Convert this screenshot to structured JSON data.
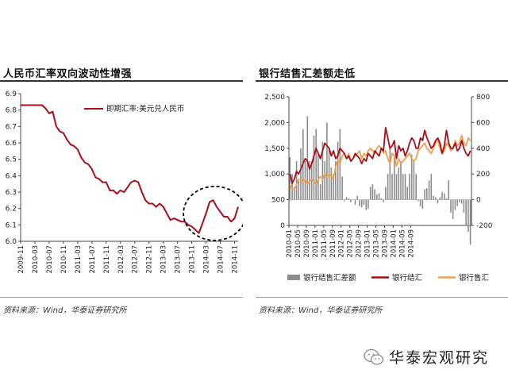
{
  "left_panel": {
    "title": "人民币汇率双向波动性增强",
    "source": "资料来源：Wind，华泰证券研究所"
  },
  "right_panel": {
    "title": "银行结售汇差额走低",
    "source": "资料来源：Wind，华泰证券研究所"
  },
  "watermark": {
    "text": "华泰宏观研究",
    "icon": "wechat-icon"
  },
  "colors": {
    "dark_red": "#a80d19",
    "orange": "#f0a050",
    "gray_bar": "#8c8c8c",
    "ellipse": "#000000"
  },
  "chart_data": [
    {
      "type": "line",
      "legend_position": "top-center",
      "grid": false,
      "series": [
        {
          "name": "即期汇率:美元兑人民币",
          "color": "#a80d19",
          "points": [
            [
              "2009-11",
              6.83
            ],
            [
              "2010-01",
              6.83
            ],
            [
              "2010-03",
              6.83
            ],
            [
              "2010-05",
              6.83
            ],
            [
              "2010-06",
              6.81
            ],
            [
              "2010-07",
              6.78
            ],
            [
              "2010-08",
              6.79
            ],
            [
              "2010-09",
              6.7
            ],
            [
              "2010-10",
              6.67
            ],
            [
              "2010-11",
              6.66
            ],
            [
              "2010-12",
              6.62
            ],
            [
              "2011-01",
              6.59
            ],
            [
              "2011-02",
              6.58
            ],
            [
              "2011-03",
              6.56
            ],
            [
              "2011-04",
              6.51
            ],
            [
              "2011-05",
              6.48
            ],
            [
              "2011-06",
              6.47
            ],
            [
              "2011-07",
              6.44
            ],
            [
              "2011-08",
              6.39
            ],
            [
              "2011-09",
              6.38
            ],
            [
              "2011-10",
              6.36
            ],
            [
              "2011-11",
              6.36
            ],
            [
              "2011-12",
              6.31
            ],
            [
              "2012-01",
              6.31
            ],
            [
              "2012-02",
              6.29
            ],
            [
              "2012-03",
              6.31
            ],
            [
              "2012-04",
              6.3
            ],
            [
              "2012-05",
              6.33
            ],
            [
              "2012-06",
              6.36
            ],
            [
              "2012-07",
              6.37
            ],
            [
              "2012-08",
              6.36
            ],
            [
              "2012-09",
              6.3
            ],
            [
              "2012-10",
              6.25
            ],
            [
              "2012-11",
              6.23
            ],
            [
              "2012-12",
              6.23
            ],
            [
              "2013-01",
              6.21
            ],
            [
              "2013-02",
              6.23
            ],
            [
              "2013-03",
              6.21
            ],
            [
              "2013-04",
              6.17
            ],
            [
              "2013-05",
              6.13
            ],
            [
              "2013-06",
              6.14
            ],
            [
              "2013-07",
              6.13
            ],
            [
              "2013-08",
              6.12
            ],
            [
              "2013-09",
              6.12
            ],
            [
              "2013-10",
              6.1
            ],
            [
              "2013-11",
              6.09
            ],
            [
              "2013-12",
              6.07
            ],
            [
              "2014-01",
              6.05
            ],
            [
              "2014-02",
              6.11
            ],
            [
              "2014-03",
              6.17
            ],
            [
              "2014-04",
              6.24
            ],
            [
              "2014-05",
              6.25
            ],
            [
              "2014-06",
              6.21
            ],
            [
              "2014-07",
              6.18
            ],
            [
              "2014-08",
              6.15
            ],
            [
              "2014-09",
              6.15
            ],
            [
              "2014-10",
              6.12
            ],
            [
              "2014-11",
              6.14
            ],
            [
              "2014-12",
              6.21
            ]
          ]
        }
      ],
      "x_ticks": [
        "2009-11",
        "2010-03",
        "2010-07",
        "2010-11",
        "2011-03",
        "2011-07",
        "2011-11",
        "2012-03",
        "2012-07",
        "2012-11",
        "2013-03",
        "2013-07",
        "2013-11",
        "2014-03",
        "2014-07",
        "2014-11"
      ],
      "y_ticks": [
        "6.0",
        "6.1",
        "6.2",
        "6.3",
        "6.4",
        "6.5",
        "6.6",
        "6.7",
        "6.8",
        "6.9"
      ],
      "ylim": [
        6.0,
        6.9
      ],
      "annotation": "dashed ellipse around 2013-11 to 2014-12"
    },
    {
      "type": "bar+line",
      "legend_position": "bottom",
      "grid": false,
      "x_ticks": [
        "2010-01",
        "2010-05",
        "2010-09",
        "2011-01",
        "2011-05",
        "2011-09",
        "2012-01",
        "2012-05",
        "2012-09",
        "2013-01",
        "2013-05",
        "2013-09",
        "2014-01",
        "2014-05",
        "2014-09"
      ],
      "left_y_ticks": [
        "0",
        "500",
        "1,000",
        "1,500",
        "2,000",
        "2,500"
      ],
      "right_y_ticks": [
        "-200",
        "0",
        "200",
        "400",
        "600",
        "800"
      ],
      "left_ylim": [
        0,
        2500
      ],
      "right_ylim": [
        -200,
        800
      ],
      "x_start": "2010-01",
      "series": [
        {
          "name": "银行结售汇差额",
          "type": "bar",
          "axis": "right",
          "color": "#8c8c8c",
          "values": [
            330,
            200,
            100,
            300,
            150,
            400,
            550,
            300,
            650,
            300,
            300,
            500,
            550,
            350,
            120,
            450,
            300,
            600,
            400,
            250,
            200,
            300,
            450,
            550,
            180,
            -10,
            20,
            10,
            -20,
            0,
            -40,
            30,
            -50,
            -60,
            -40,
            -80,
            -70,
            100,
            120,
            80,
            40,
            50,
            10,
            -20,
            100,
            200,
            400,
            200,
            350,
            200,
            250,
            300,
            200,
            200,
            100,
            200,
            350,
            300,
            200,
            -10,
            -50,
            -70,
            80,
            90,
            150,
            200,
            30,
            20,
            -30,
            20,
            60,
            50,
            10,
            150,
            -100,
            -150,
            -80,
            -50,
            -20,
            -30,
            -100,
            -200,
            -250,
            -350
          ]
        },
        {
          "name": "银行结汇",
          "type": "line",
          "axis": "left",
          "color": "#a80d19",
          "values": [
            1000,
            820,
            900,
            1050,
            1000,
            1100,
            1200,
            1300,
            1250,
            1100,
            1200,
            1350,
            1500,
            1400,
            1300,
            1450,
            1600,
            1550,
            1500,
            1350,
            1450,
            1300,
            1350,
            1500,
            1450,
            1400,
            1300,
            1350,
            1250,
            1300,
            1400,
            1350,
            1300,
            1200,
            1300,
            1250,
            1400,
            1350,
            1300,
            1450,
            1400,
            1350,
            1500,
            1450,
            1900,
            1700,
            1500,
            1550,
            1650,
            1300,
            1550,
            1450,
            1500,
            1350,
            1450,
            1600,
            1700,
            1650,
            1500,
            1500,
            1700,
            1650,
            1850,
            1700,
            1600,
            1500,
            1550,
            1650,
            1700,
            1600,
            1400,
            1550,
            1850,
            1600,
            1500,
            1500,
            1600,
            1450,
            1500,
            1650,
            1500,
            1400,
            1350,
            1450
          ]
        },
        {
          "name": "银行售汇",
          "type": "line",
          "axis": "left",
          "color": "#f0a050",
          "values": [
            800,
            700,
            700,
            800,
            900,
            900,
            850,
            900,
            800,
            850,
            900,
            850,
            800,
            900,
            950,
            900,
            1000,
            950,
            1000,
            950,
            900,
            1150,
            1250,
            1200,
            1350,
            1400,
            1300,
            1400,
            1250,
            1300,
            1350,
            1400,
            1450,
            1300,
            1400,
            1350,
            1450,
            1500,
            1450,
            1400,
            1500,
            1550,
            1500,
            1400,
            1450,
            1300,
            1200,
            1400,
            1350,
            1150,
            1300,
            1200,
            1250,
            1300,
            1350,
            1400,
            1300,
            1250,
            1300,
            1450,
            1500,
            1550,
            1600,
            1500,
            1450,
            1400,
            1500,
            1600,
            1650,
            1500,
            1400,
            1450,
            1600,
            1550,
            1450,
            1500,
            1650,
            1550,
            1600,
            1750,
            1600,
            1550,
            1700,
            1650
          ]
        }
      ]
    }
  ]
}
